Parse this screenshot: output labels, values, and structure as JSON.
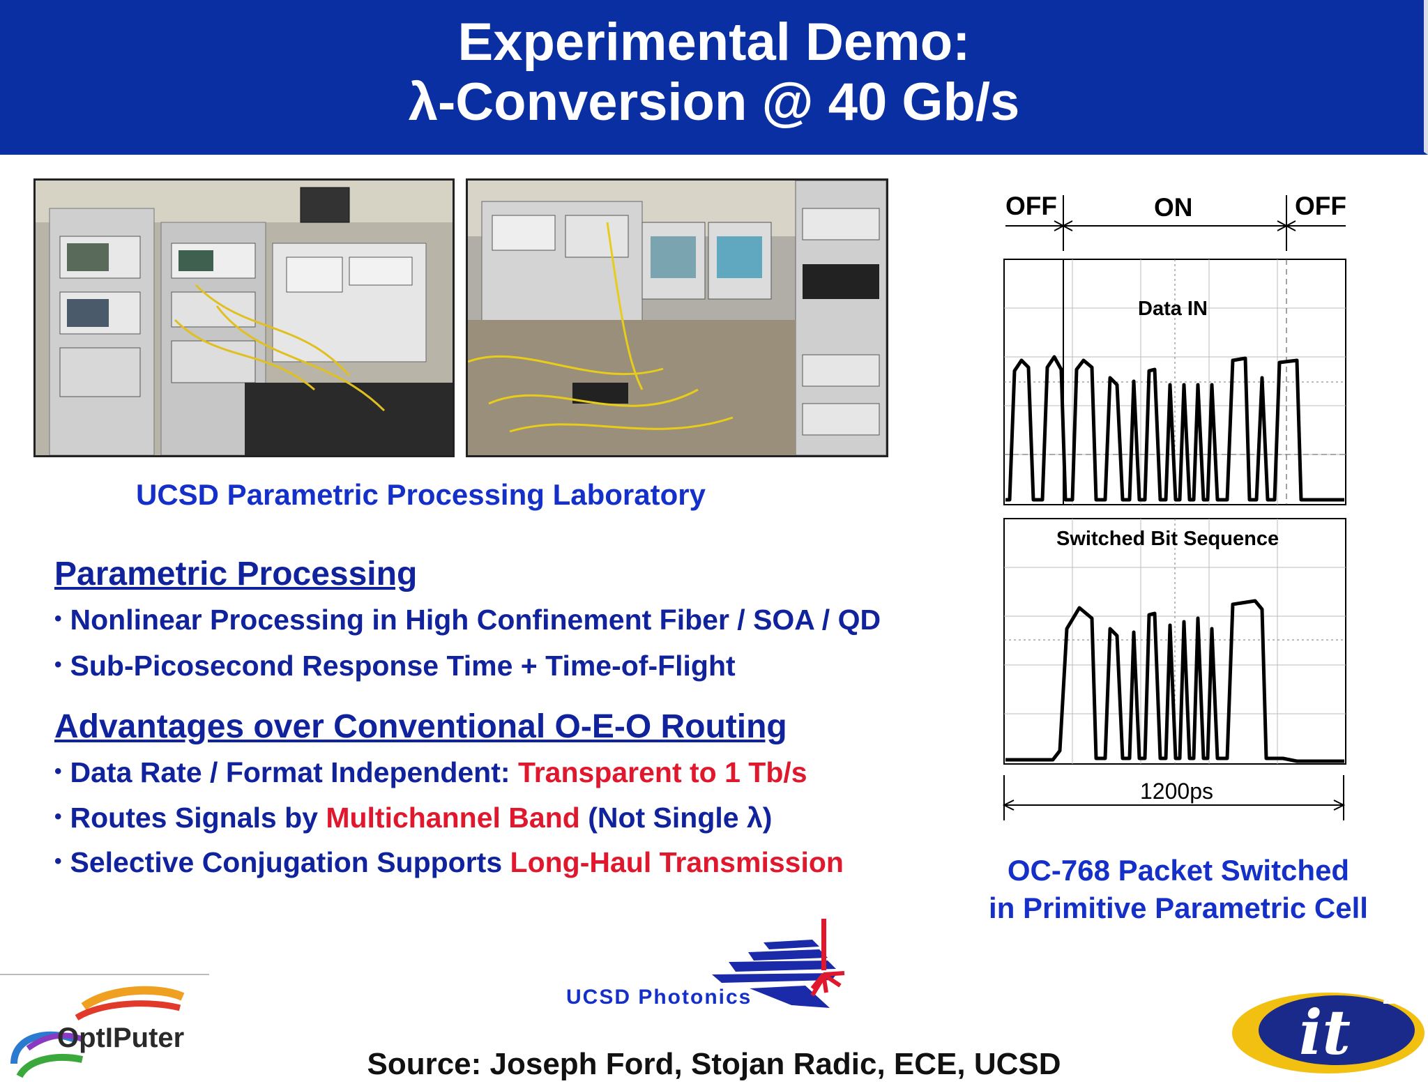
{
  "header": {
    "title_line1": "Experimental Demo:",
    "title_line2": "λ-Conversion @ 40 Gb/s"
  },
  "photos": {
    "caption": "UCSD Parametric Processing Laboratory"
  },
  "section1": {
    "heading": "Parametric Processing",
    "bullets": [
      "Nonlinear Processing in High Confinement Fiber / SOA / QD",
      "Sub-Picosecond Response Time + Time-of-Flight"
    ]
  },
  "section2": {
    "heading": "Advantages over Conventional O-E-O Routing",
    "bullet1": {
      "text": "Data Rate / Format Independent: ",
      "highlight": "Transparent to 1 Tb/s"
    },
    "bullet2": {
      "text": "Routes Signals by ",
      "highlight": "Multichannel Band",
      "tail": " (Not Single λ)"
    },
    "bullet3": {
      "text": "Selective Conjugation Supports ",
      "highlight": "Long-Haul Transmission"
    }
  },
  "scope": {
    "off_left": "OFF",
    "on": "ON",
    "off_right": "OFF",
    "top_label": "Data IN",
    "bottom_label": "Switched Bit Sequence",
    "time_label": "1200ps",
    "caption_line1": "OC-768 Packet Switched",
    "caption_line2": "in Primitive Parametric Cell"
  },
  "logos": {
    "optiputer": "OptIPuter",
    "photonics": "UCSD Photonics",
    "it2": "it"
  },
  "footer": {
    "source": "Source: Joseph Ford, Stojan Radic, ECE, UCSD"
  },
  "colors": {
    "banner": "#0a2fa2",
    "text_blue": "#10229c",
    "caption_blue": "#1530c8",
    "highlight_red": "#e0182e"
  }
}
